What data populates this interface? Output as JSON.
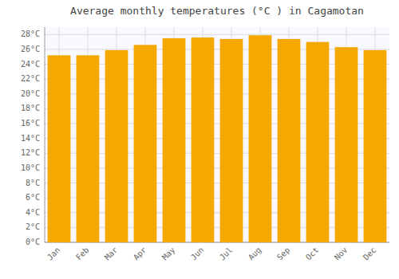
{
  "chart_data": {
    "type": "bar",
    "title": "Average monthly temperatures (°C ) in Cagamotan",
    "categories": [
      "Jan",
      "Feb",
      "Mar",
      "Apr",
      "May",
      "Jun",
      "Jul",
      "Aug",
      "Sep",
      "Oct",
      "Nov",
      "Dec"
    ],
    "values": [
      25.2,
      25.2,
      25.9,
      26.6,
      27.5,
      27.6,
      27.4,
      27.9,
      27.4,
      27.0,
      26.3,
      25.9
    ],
    "color": "#F5A800",
    "ylim": [
      0,
      29
    ],
    "yticks": [
      {
        "value": 0,
        "label": "0°C"
      },
      {
        "value": 2,
        "label": "2°C"
      },
      {
        "value": 4,
        "label": "4°C"
      },
      {
        "value": 6,
        "label": "6°C"
      },
      {
        "value": 8,
        "label": "8°C"
      },
      {
        "value": 10,
        "label": "10°C"
      },
      {
        "value": 12,
        "label": "12°C"
      },
      {
        "value": 14,
        "label": "14°C"
      },
      {
        "value": 16,
        "label": "16°C"
      },
      {
        "value": 18,
        "label": "18°C"
      },
      {
        "value": 20,
        "label": "20°C"
      },
      {
        "value": 22,
        "label": "22°C"
      },
      {
        "value": 24,
        "label": "24°C"
      },
      {
        "value": 26,
        "label": "26°C"
      },
      {
        "value": 28,
        "label": "28°C"
      }
    ],
    "grid": true
  }
}
